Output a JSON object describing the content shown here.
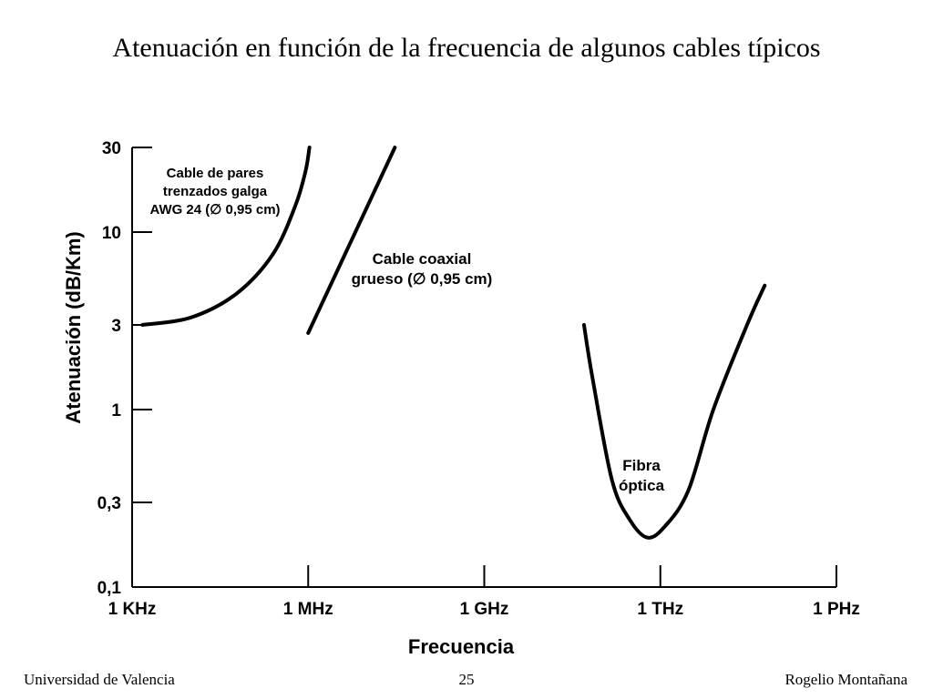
{
  "slide": {
    "title": "Atenuación en función de la frecuencia de algunos cables típicos"
  },
  "footer": {
    "left": "Universidad de Valencia",
    "center": "25",
    "right": "Rogelio Montañana"
  },
  "chart_data": {
    "type": "line",
    "xlabel": "Frecuencia",
    "ylabel": "Atenuación (dB/Km)",
    "xscale": "log",
    "yscale": "log",
    "xlim": [
      "1 KHz",
      "1 PHz"
    ],
    "xlim_hz": [
      1000,
      1000000000000000
    ],
    "ylim": [
      0.1,
      30
    ],
    "x_ticks": [
      "1 KHz",
      "1 MHz",
      "1 GHz",
      "1 THz",
      "1 PHz"
    ],
    "x_ticks_hz": [
      1000,
      1000000,
      1000000000,
      1000000000000,
      1000000000000000
    ],
    "y_ticks": [
      "30",
      "10",
      "3",
      "1",
      "0,3",
      "0,1"
    ],
    "y_ticks_values": [
      30,
      10,
      3,
      1,
      0.3,
      0.1
    ],
    "grid": false,
    "series": [
      {
        "name": "Cable de pares trenzados galga AWG 24 (∅ 0,95 cm)",
        "label_lines": [
          "Cable de pares",
          "trenzados galga",
          "AWG 24 (∅ 0,95 cm)"
        ],
        "color": "#000000",
        "points": [
          {
            "x_hz": 1500,
            "y": 3.0
          },
          {
            "x_hz": 10000,
            "y": 3.3
          },
          {
            "x_hz": 60000,
            "y": 4.5
          },
          {
            "x_hz": 250000,
            "y": 7.5
          },
          {
            "x_hz": 600000,
            "y": 14
          },
          {
            "x_hz": 900000,
            "y": 22
          },
          {
            "x_hz": 1050000,
            "y": 30
          }
        ]
      },
      {
        "name": "Cable coaxial grueso (∅ 0,95 cm)",
        "label_lines": [
          "Cable coaxial",
          "grueso (∅ 0,95 cm)"
        ],
        "color": "#000000",
        "points": [
          {
            "x_hz": 1000000,
            "y": 2.7
          },
          {
            "x_hz": 30000000,
            "y": 30
          }
        ]
      },
      {
        "name": "Fibra óptica",
        "label_lines": [
          "Fibra",
          "óptica"
        ],
        "color": "#000000",
        "points": [
          {
            "x_hz": 50000000000,
            "y": 3.0
          },
          {
            "x_hz": 70000000000,
            "y": 1.5
          },
          {
            "x_hz": 150000000000,
            "y": 0.4
          },
          {
            "x_hz": 300000000000,
            "y": 0.24
          },
          {
            "x_hz": 600000000000,
            "y": 0.19
          },
          {
            "x_hz": 1200000000000,
            "y": 0.22
          },
          {
            "x_hz": 3000000000000,
            "y": 0.35
          },
          {
            "x_hz": 8000000000000,
            "y": 1.0
          },
          {
            "x_hz": 30000000000000,
            "y": 3.0
          },
          {
            "x_hz": 60000000000000,
            "y": 5.0
          }
        ]
      }
    ]
  }
}
